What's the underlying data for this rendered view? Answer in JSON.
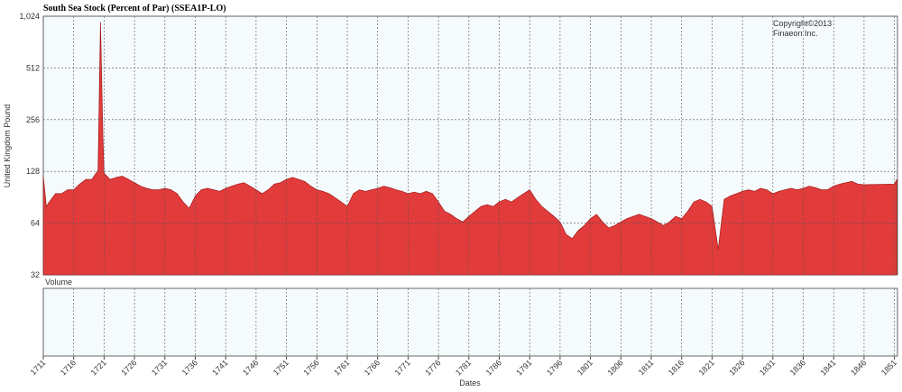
{
  "chart_data": {
    "type": "area",
    "title": "South Sea Stock (Percent of Par) (SSEA1P-LO)",
    "ylabel": "United Kingdom Pound",
    "xlabel": "Dates",
    "volume_label": "Volume",
    "annotation": [
      "Copyright©2013",
      "Finaeon Inc."
    ],
    "log_scale": true,
    "grid": true,
    "ylim": [
      32,
      1024
    ],
    "yticks": [
      32,
      64,
      128,
      256,
      512,
      {
        "value": 1024,
        "label": "1,024"
      }
    ],
    "xlim": [
      1711,
      1851.5
    ],
    "xticks": [
      1711,
      1716,
      1721,
      1726,
      1731,
      1736,
      1741,
      1746,
      1751,
      1756,
      1761,
      1766,
      1771,
      1776,
      1781,
      1786,
      1791,
      1796,
      1801,
      1806,
      1811,
      1816,
      1821,
      1826,
      1831,
      1836,
      1841,
      1846,
      1851
    ],
    "x": [
      1711,
      1711.5,
      1712,
      1713,
      1714,
      1715,
      1716,
      1717,
      1718,
      1719,
      1720,
      1720.4,
      1720.8,
      1721,
      1722,
      1723,
      1724,
      1725,
      1726,
      1727,
      1728,
      1729,
      1730,
      1731,
      1732,
      1733,
      1734,
      1735,
      1736,
      1737,
      1738,
      1739,
      1740,
      1741,
      1742,
      1743,
      1744,
      1745,
      1746,
      1747,
      1748,
      1749,
      1750,
      1751,
      1752,
      1753,
      1754,
      1755,
      1756,
      1757,
      1758,
      1759,
      1760,
      1761,
      1762,
      1763,
      1764,
      1765,
      1766,
      1767,
      1768,
      1769,
      1770,
      1771,
      1772,
      1773,
      1774,
      1775,
      1776,
      1777,
      1778,
      1779,
      1780,
      1781,
      1782,
      1783,
      1784,
      1785,
      1786,
      1787,
      1788,
      1789,
      1790,
      1791,
      1792,
      1793,
      1794,
      1795,
      1796,
      1797,
      1798,
      1799,
      1800,
      1801,
      1802,
      1803,
      1804,
      1805,
      1806,
      1807,
      1808,
      1809,
      1810,
      1811,
      1812,
      1813,
      1814,
      1815,
      1816,
      1817,
      1818,
      1819,
      1820,
      1821,
      1822,
      1823,
      1824,
      1825,
      1826,
      1827,
      1828,
      1829,
      1830,
      1831,
      1832,
      1833,
      1834,
      1835,
      1836,
      1837,
      1838,
      1839,
      1840,
      1841,
      1842,
      1843,
      1844,
      1845,
      1846,
      1851,
      1851.4
    ],
    "series": [
      {
        "name": "South Sea Stock",
        "color": "#e23b3b",
        "values": [
          120,
          80,
          85,
          95,
          95,
          100,
          100,
          108,
          115,
          115,
          130,
          950,
          200,
          125,
          115,
          118,
          120,
          115,
          110,
          105,
          102,
          100,
          100,
          102,
          100,
          95,
          85,
          78,
          92,
          100,
          102,
          100,
          98,
          102,
          105,
          108,
          110,
          105,
          100,
          95,
          100,
          108,
          110,
          115,
          118,
          115,
          112,
          105,
          100,
          98,
          95,
          90,
          85,
          80,
          95,
          100,
          98,
          100,
          102,
          105,
          103,
          100,
          98,
          95,
          97,
          95,
          98,
          95,
          85,
          75,
          72,
          68,
          65,
          70,
          75,
          80,
          82,
          80,
          85,
          88,
          85,
          90,
          95,
          100,
          88,
          80,
          75,
          70,
          65,
          55,
          52,
          58,
          62,
          68,
          72,
          65,
          60,
          62,
          65,
          68,
          70,
          72,
          70,
          68,
          65,
          62,
          65,
          70,
          68,
          75,
          85,
          88,
          85,
          80,
          45,
          88,
          92,
          95,
          98,
          100,
          98,
          102,
          100,
          95,
          98,
          100,
          102,
          100,
          102,
          105,
          103,
          100,
          100,
          105,
          108,
          110,
          112,
          108,
          107,
          108,
          115
        ]
      }
    ]
  }
}
